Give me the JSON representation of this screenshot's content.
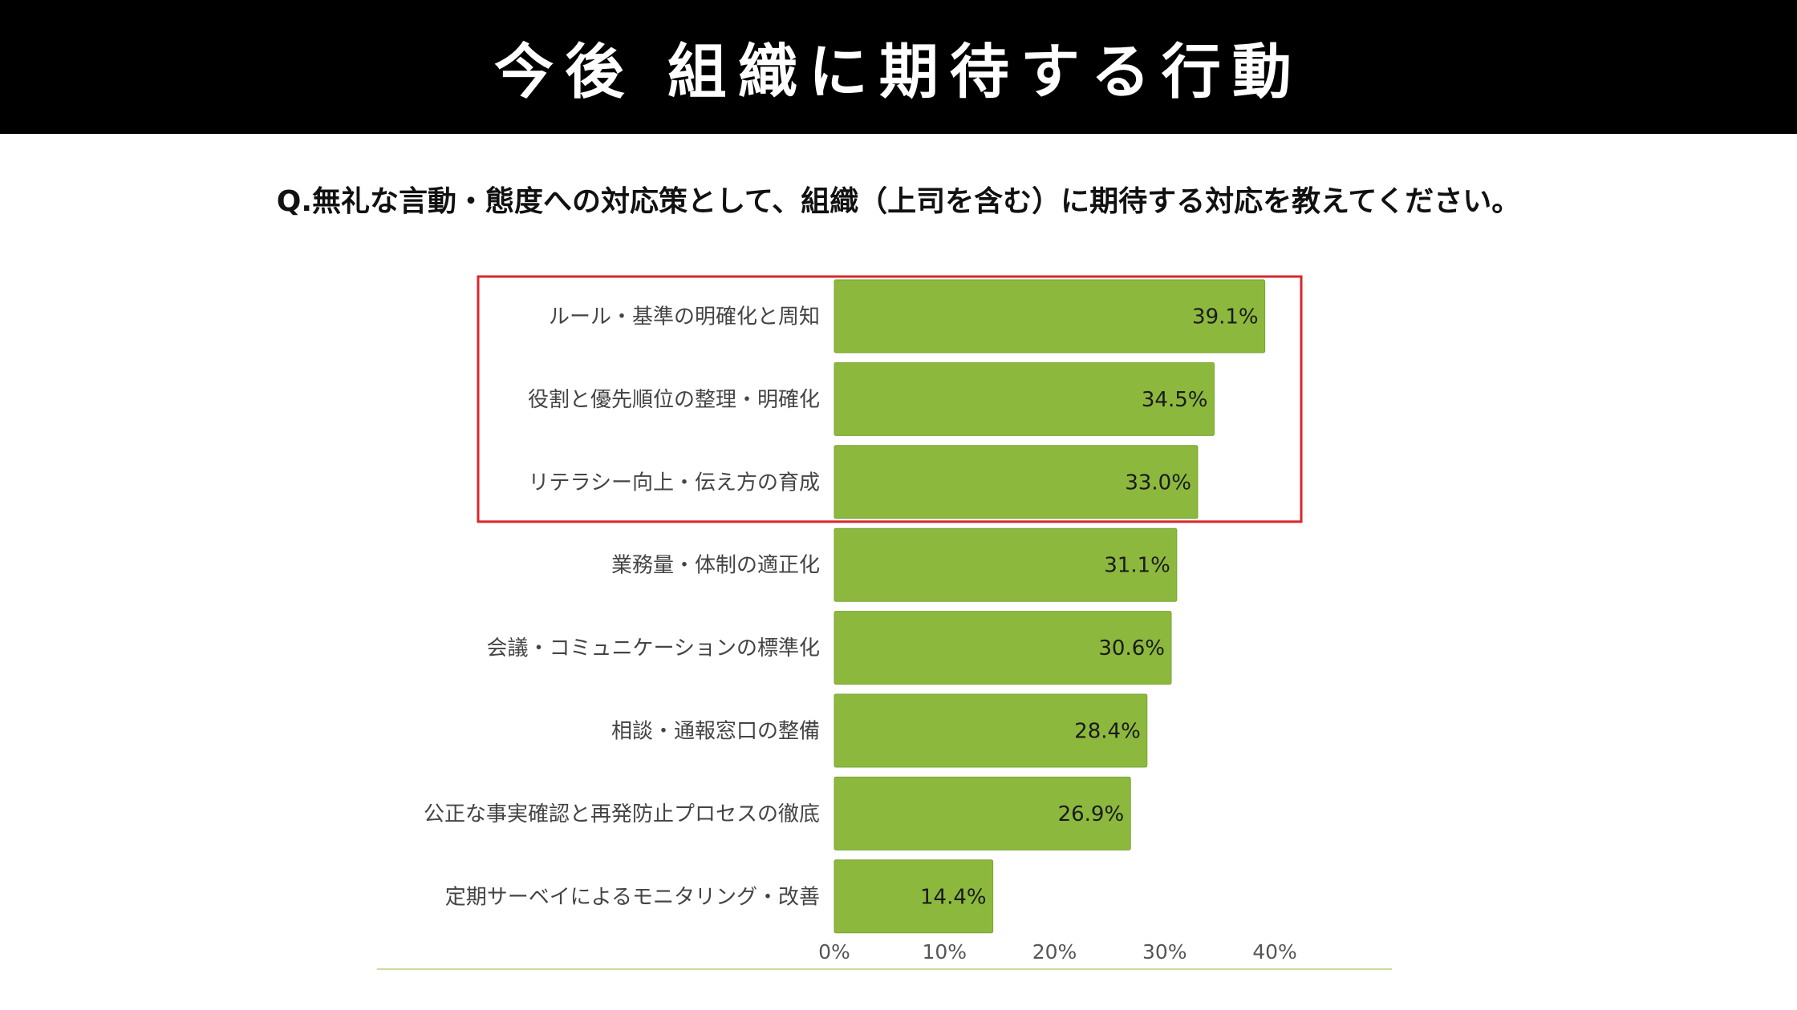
{
  "header": {
    "title": "今後 組織に期待する行動"
  },
  "question": "Q.無礼な言動・態度への対応策として、組織（上司を含む）に期待する対応を教えてください。",
  "colors": {
    "bar": "#8cb83e",
    "highlight_box": "#d9262c",
    "header_bg": "#000000",
    "baseline": "#c8dca0"
  },
  "chart_data": {
    "type": "bar",
    "orientation": "horizontal",
    "categories": [
      "ルール・基準の明確化と周知",
      "役割と優先順位の整理・明確化",
      "リテラシー向上・伝え方の育成",
      "業務量・体制の適正化",
      "会議・コミュニケーションの標準化",
      "相談・通報窓口の整備",
      "公正な事実確認と再発防止プロセスの徹底",
      "定期サーベイによるモニタリング・改善"
    ],
    "values": [
      39.1,
      34.5,
      33.0,
      31.1,
      30.6,
      28.4,
      26.9,
      14.4
    ],
    "value_labels": [
      "39.1%",
      "34.5%",
      "33.0%",
      "31.1%",
      "30.6%",
      "28.4%",
      "26.9%",
      "14.4%"
    ],
    "x_ticks": [
      "0%",
      "10%",
      "20%",
      "30%",
      "40%"
    ],
    "xlim": [
      0,
      40
    ],
    "highlighted_categories": 3
  }
}
